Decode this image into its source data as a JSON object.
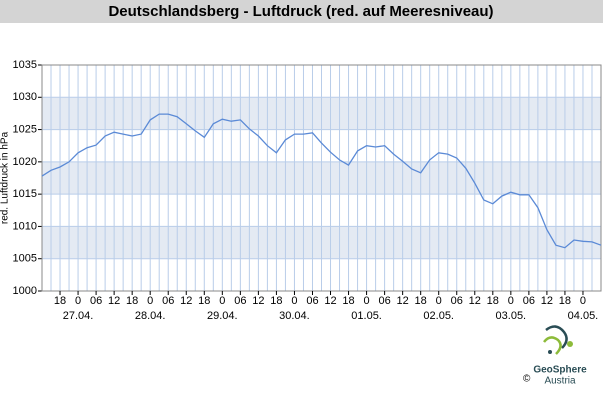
{
  "chart_data": {
    "type": "line",
    "title": "Deutschlandsberg - Luftdruck (red. auf Meeresniveau)",
    "y_label": "red. Luftdruck in hPa",
    "color": "#5b8ad6",
    "grid": true,
    "xlim": [
      "26.04. 12",
      "04.05. 06"
    ],
    "ylim": [
      1000,
      1035
    ],
    "yticks": [
      1000,
      1005,
      1010,
      1015,
      1020,
      1025,
      1030,
      1035
    ],
    "xticks": [
      {
        "value": "26.04. 18",
        "label": "18"
      },
      {
        "value": "27.04. 00",
        "label": "0"
      },
      {
        "value": "27.04. 06",
        "label": "06"
      },
      {
        "value": "27.04. 12",
        "label": "12"
      },
      {
        "value": "27.04. 18",
        "label": "18"
      },
      {
        "value": "28.04. 00",
        "label": "0"
      },
      {
        "value": "28.04. 06",
        "label": "06"
      },
      {
        "value": "28.04. 12",
        "label": "12"
      },
      {
        "value": "28.04. 18",
        "label": "18"
      },
      {
        "value": "29.04. 00",
        "label": "0"
      },
      {
        "value": "29.04. 06",
        "label": "06"
      },
      {
        "value": "29.04. 12",
        "label": "12"
      },
      {
        "value": "29.04. 18",
        "label": "18"
      },
      {
        "value": "30.04. 00",
        "label": "0"
      },
      {
        "value": "30.04. 06",
        "label": "06"
      },
      {
        "value": "30.04. 12",
        "label": "12"
      },
      {
        "value": "30.04. 18",
        "label": "18"
      },
      {
        "value": "01.05. 00",
        "label": "0"
      },
      {
        "value": "01.05. 06",
        "label": "06"
      },
      {
        "value": "01.05. 12",
        "label": "12"
      },
      {
        "value": "01.05. 18",
        "label": "18"
      },
      {
        "value": "02.05. 00",
        "label": "0"
      },
      {
        "value": "02.05. 06",
        "label": "06"
      },
      {
        "value": "02.05. 12",
        "label": "12"
      },
      {
        "value": "02.05. 18",
        "label": "18"
      },
      {
        "value": "03.05. 00",
        "label": "0"
      },
      {
        "value": "03.05. 06",
        "label": "06"
      },
      {
        "value": "03.05. 12",
        "label": "12"
      },
      {
        "value": "03.05. 18",
        "label": "18"
      },
      {
        "value": "04.05. 00",
        "label": "0"
      }
    ],
    "xdates": [
      {
        "value": "27.04. 00",
        "label": "27.04."
      },
      {
        "value": "28.04. 00",
        "label": "28.04."
      },
      {
        "value": "29.04. 00",
        "label": "29.04."
      },
      {
        "value": "30.04. 00",
        "label": "30.04."
      },
      {
        "value": "01.05. 00",
        "label": "01.05."
      },
      {
        "value": "02.05. 00",
        "label": "02.05."
      },
      {
        "value": "03.05. 00",
        "label": "03.05."
      },
      {
        "value": "04.05. 00",
        "label": "04.05."
      }
    ],
    "x": [
      "26.04. 12",
      "26.04. 15",
      "26.04. 18",
      "26.04. 21",
      "27.04. 00",
      "27.04. 03",
      "27.04. 06",
      "27.04. 09",
      "27.04. 12",
      "27.04. 15",
      "27.04. 18",
      "27.04. 21",
      "28.04. 00",
      "28.04. 03",
      "28.04. 06",
      "28.04. 09",
      "28.04. 12",
      "28.04. 15",
      "28.04. 18",
      "28.04. 21",
      "29.04. 00",
      "29.04. 03",
      "29.04. 06",
      "29.04. 09",
      "29.04. 12",
      "29.04. 15",
      "29.04. 18",
      "29.04. 21",
      "30.04. 00",
      "30.04. 03",
      "30.04. 06",
      "30.04. 09",
      "30.04. 12",
      "30.04. 15",
      "30.04. 18",
      "30.04. 21",
      "01.05. 00",
      "01.05. 03",
      "01.05. 06",
      "01.05. 09",
      "01.05. 12",
      "01.05. 15",
      "01.05. 18",
      "01.05. 21",
      "02.05. 00",
      "02.05. 03",
      "02.05. 06",
      "02.05. 09",
      "02.05. 12",
      "02.05. 15",
      "02.05. 18",
      "02.05. 21",
      "03.05. 00",
      "03.05. 03",
      "03.05. 06",
      "03.05. 09",
      "03.05. 12",
      "03.05. 15",
      "03.05. 18",
      "03.05. 21",
      "04.05. 00",
      "04.05. 03",
      "04.05. 06"
    ],
    "values": [
      1017.8,
      1018.7,
      1019.2,
      1020.0,
      1021.4,
      1022.2,
      1022.6,
      1024.0,
      1024.6,
      1024.3,
      1024.0,
      1024.3,
      1026.5,
      1027.4,
      1027.4,
      1027.0,
      1025.9,
      1024.8,
      1023.8,
      1025.9,
      1026.6,
      1026.3,
      1026.5,
      1025.1,
      1024.0,
      1022.5,
      1021.4,
      1023.4,
      1024.3,
      1024.3,
      1024.5,
      1022.9,
      1021.5,
      1020.3,
      1019.5,
      1021.7,
      1022.5,
      1022.3,
      1022.5,
      1021.2,
      1020.1,
      1018.9,
      1018.3,
      1020.3,
      1021.4,
      1021.2,
      1020.6,
      1019.0,
      1016.7,
      1014.1,
      1013.5,
      1014.7,
      1015.3,
      1014.9,
      1014.9,
      1012.9,
      1009.5,
      1007.1,
      1006.7,
      1007.9,
      1007.7,
      1007.6,
      1007.1
    ]
  },
  "footer": {
    "brand": "GeoSphere",
    "sub": "Austria",
    "copyright": "©"
  }
}
